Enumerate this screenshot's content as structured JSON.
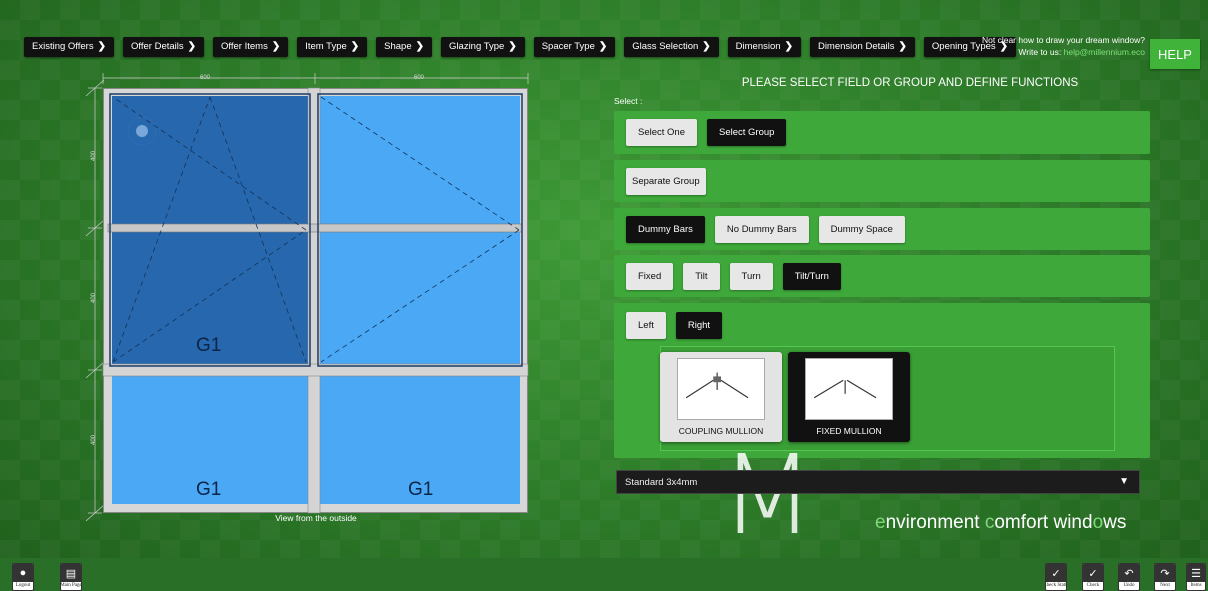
{
  "nav": {
    "items": [
      {
        "label": "Existing Offers"
      },
      {
        "label": "Offer Details"
      },
      {
        "label": "Offer Items"
      },
      {
        "label": "Item Type"
      },
      {
        "label": "Shape"
      },
      {
        "label": "Glazing Type"
      },
      {
        "label": "Spacer Type"
      },
      {
        "label": "Glass Selection"
      },
      {
        "label": "Dimension"
      },
      {
        "label": "Dimension Details"
      },
      {
        "label": "Opening Types"
      }
    ]
  },
  "help": {
    "line1": "Not clear how to draw your dream window?",
    "line2_prefix": "Write to us: ",
    "email": "help@millennium.eco",
    "button_label": "HELP"
  },
  "drawing": {
    "dim_top_left": "600",
    "dim_top_right": "600",
    "dim_side_top": "400",
    "dim_side_mid": "400",
    "dim_side_bottom": "400",
    "labels": {
      "top_left": "G1",
      "bottom_left": "G1",
      "bottom_right": "G1"
    },
    "caption": "View from the outside"
  },
  "panel": {
    "title": "PLEASE SELECT FIELD OR GROUP AND DEFINE FUNCTIONS",
    "select_label": "Select :",
    "row1": {
      "select_one": "Select One",
      "select_group": "Select Group"
    },
    "row2": {
      "separate_group": "Separate Group"
    },
    "row3": {
      "dummy_bars": "Dummy Bars",
      "no_dummy_bars": "No Dummy Bars",
      "dummy_space": "Dummy Space"
    },
    "row4": {
      "fixed": "Fixed",
      "tilt": "Tilt",
      "turn": "Turn",
      "tilt_turn": "Tilt/Turn"
    },
    "row5": {
      "left": "Left",
      "right": "Right"
    },
    "cards": {
      "coupling": "COUPLING MULLION",
      "fixed": "FIXED MULLION"
    },
    "glass_select_value": "Standard 3x4mm"
  },
  "brand": {
    "tag_e": "e",
    "tag_nvironment": "nvironment ",
    "tag_c": "c",
    "tag_omfort": "omfort wind",
    "tag_o": "o",
    "tag_ws": "ws"
  },
  "bottom": {
    "logout": "Logout",
    "main_page": "Main Page",
    "check_static": "Check Static",
    "check": "Check",
    "undo": "Undo",
    "next": "Next",
    "items": "Items"
  },
  "colors": {
    "background": "#2f7d2c",
    "pane_light": "#4aa8f5",
    "pane_dark": "#2767ad",
    "row": "#3ea93a",
    "help": "#3fb33a"
  }
}
